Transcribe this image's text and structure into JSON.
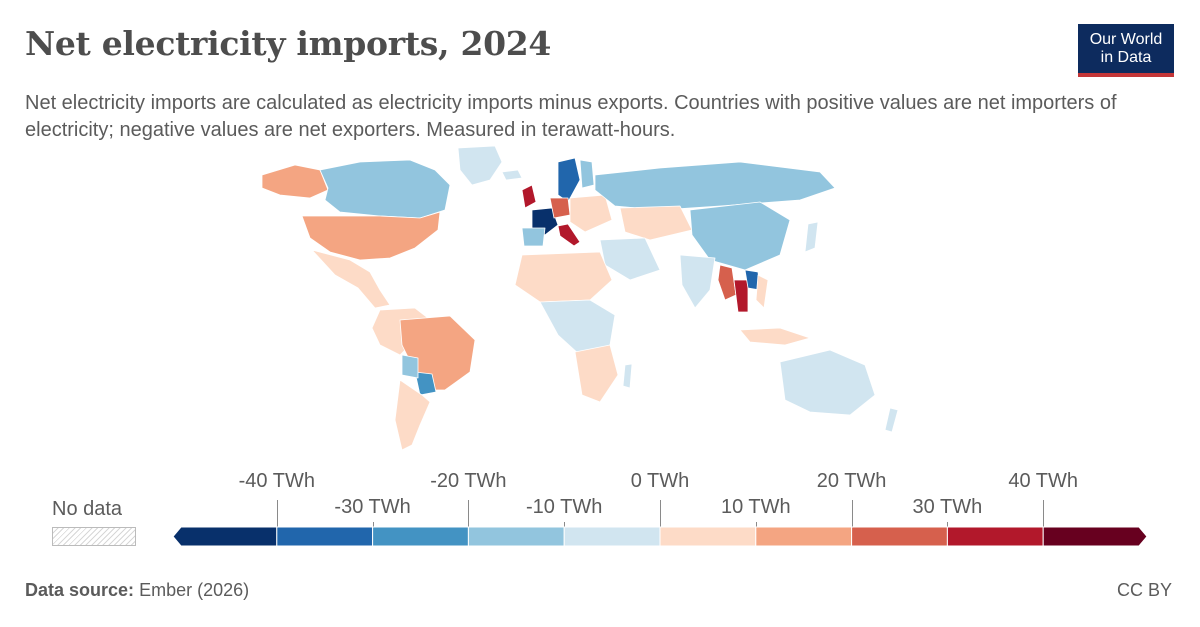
{
  "header": {
    "title": "Net electricity imports, 2024",
    "subtitle": "Net electricity imports are calculated as electricity imports minus exports. Countries with positive values are net importers of electricity; negative values are net exporters. Measured in terawatt-hours."
  },
  "logo": {
    "line1": "Our World",
    "line2": "in Data"
  },
  "legend": {
    "no_data_label": "No data",
    "upper_labels": [
      "-40 TWh",
      "-20 TWh",
      "0 TWh",
      "20 TWh",
      "40 TWh"
    ],
    "lower_labels": [
      "-30 TWh",
      "-10 TWh",
      "10 TWh",
      "30 TWh"
    ],
    "bins": [
      {
        "to": -40,
        "color": "#08306b"
      },
      {
        "from": -40,
        "to": -30,
        "color": "#2166ac"
      },
      {
        "from": -30,
        "to": -20,
        "color": "#4393c3"
      },
      {
        "from": -20,
        "to": -10,
        "color": "#92c5de"
      },
      {
        "from": -10,
        "to": 0,
        "color": "#d1e5f0"
      },
      {
        "from": 0,
        "to": 10,
        "color": "#fddbc7"
      },
      {
        "from": 10,
        "to": 20,
        "color": "#f4a582"
      },
      {
        "from": 20,
        "to": 30,
        "color": "#d6604d"
      },
      {
        "from": 30,
        "to": 40,
        "color": "#b2182b"
      },
      {
        "from": 40,
        "color": "#67001f"
      }
    ]
  },
  "footer": {
    "source_label": "Data source:",
    "source_value": "Ember (2026)",
    "license": "CC BY"
  },
  "colors": {
    "title": "#4d4d4d",
    "text": "#5b5b5b",
    "logo_bg": "#0d2b5e",
    "logo_accent": "#c43638",
    "border": "#ffffff"
  }
}
